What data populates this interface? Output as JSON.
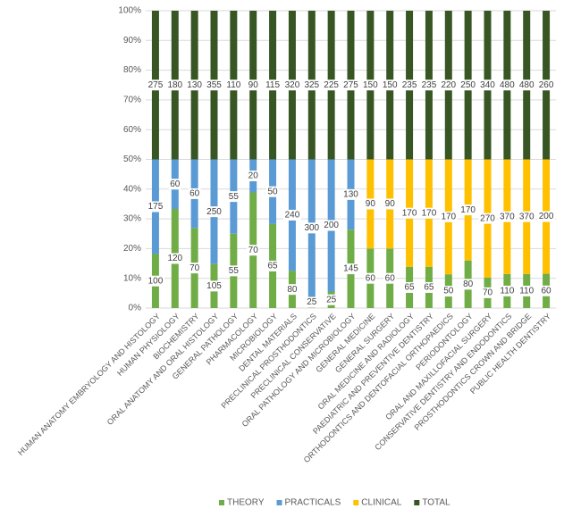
{
  "chart_data": {
    "type": "bar",
    "stacking": "percent",
    "categories": [
      "HUMAN ANATOMY EMBRYOLOGY AND HISTOLOGY",
      "HUMAN PHYSIOLOGY",
      "BIOCHEMISTRY",
      "ORAL ANATOMY AND ORAL HISTOLOGY",
      "GENERAL PATHOLOGY",
      "PHARMACOLOGY",
      "MICROBIOLOGY",
      "DENTAL MATERIALS",
      "PRECLINICAL PROSTHODONTICS",
      "PRECLINICAL CONSERVATIVE",
      "ORAL PATHOLOGY AND MICROBIOLOGY",
      "GENERAL MEDICINE",
      "GENERAL SURGERY",
      "ORAL MEDICINE AND RADIOLOGY",
      "PAEDIATRIC AND PREVENTIVE DENTISTRY",
      "ORTHODONTICS AND DENTOFACIAL ORTHOPAEDICS",
      "PERIODONTOLOGY",
      "ORAL AND MAXILLOFACIAL SURGERY",
      "CONSERVATIVE DENTISTRY AND ENDODONTICS",
      "PROSTHODONTICS CROWN AND BRIDGE",
      "PUBLIC HEALTH DENTISTRY"
    ],
    "series": [
      {
        "name": "THEORY",
        "color": "#70ad47",
        "values": [
          100,
          120,
          70,
          105,
          55,
          70,
          65,
          80,
          25,
          25,
          145,
          60,
          60,
          65,
          65,
          50,
          80,
          70,
          110,
          110,
          60
        ]
      },
      {
        "name": "PRACTICALS",
        "color": "#5b9bd5",
        "values": [
          175,
          60,
          60,
          250,
          55,
          20,
          50,
          240,
          300,
          200,
          130,
          null,
          null,
          null,
          null,
          null,
          null,
          null,
          null,
          null,
          null
        ]
      },
      {
        "name": "CLINICAL",
        "color": "#ffc000",
        "values": [
          null,
          null,
          null,
          null,
          null,
          null,
          null,
          null,
          null,
          null,
          null,
          90,
          90,
          170,
          170,
          170,
          170,
          270,
          370,
          370,
          200
        ]
      },
      {
        "name": "TOTAL",
        "color": "#375623",
        "values": [
          275,
          180,
          130,
          355,
          110,
          90,
          115,
          320,
          325,
          225,
          275,
          150,
          150,
          235,
          235,
          220,
          250,
          340,
          480,
          480,
          260
        ]
      }
    ],
    "ylim": [
      0,
      100
    ],
    "yticks": [
      {
        "value": 0,
        "label": "0%"
      },
      {
        "value": 10,
        "label": "10%"
      },
      {
        "value": 20,
        "label": "20%"
      },
      {
        "value": 30,
        "label": "30%"
      },
      {
        "value": 40,
        "label": "40%"
      },
      {
        "value": 50,
        "label": "50%"
      },
      {
        "value": 60,
        "label": "60%"
      },
      {
        "value": 70,
        "label": "70%"
      },
      {
        "value": 80,
        "label": "80%"
      },
      {
        "value": 90,
        "label": "90%"
      },
      {
        "value": 100,
        "label": "100%"
      }
    ],
    "grid": true,
    "legend": "bottom"
  }
}
